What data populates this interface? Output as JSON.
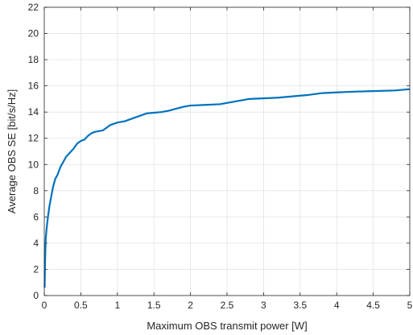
{
  "chart_data": {
    "type": "line",
    "xlabel": "Maximum OBS transmit power [W]",
    "ylabel": "Average OBS SE [bit/s/Hz]",
    "xlim": [
      0,
      5
    ],
    "ylim": [
      0,
      22
    ],
    "xticks": [
      0,
      0.5,
      1,
      1.5,
      2,
      2.5,
      3,
      3.5,
      4,
      4.5,
      5
    ],
    "xtick_labels": [
      "0",
      "0.5",
      "1",
      "1.5",
      "2",
      "2.5",
      "3",
      "3.5",
      "4",
      "4.5",
      "5"
    ],
    "yticks": [
      0,
      2,
      4,
      6,
      8,
      10,
      12,
      14,
      16,
      18,
      20,
      22
    ],
    "ytick_labels": [
      "0",
      "2",
      "4",
      "6",
      "8",
      "10",
      "12",
      "14",
      "16",
      "18",
      "20",
      "22"
    ],
    "grid": true,
    "series": [
      {
        "color": "#0072BD",
        "x": [
          0.005,
          0.01,
          0.02,
          0.03,
          0.05,
          0.07,
          0.1,
          0.12,
          0.15,
          0.18,
          0.22,
          0.26,
          0.3,
          0.35,
          0.4,
          0.45,
          0.5,
          0.55,
          0.6,
          0.65,
          0.7,
          0.8,
          0.85,
          0.9,
          1.0,
          1.1,
          1.2,
          1.3,
          1.4,
          1.5,
          1.6,
          1.7,
          1.8,
          1.9,
          2.0,
          2.2,
          2.4,
          2.5,
          2.6,
          2.8,
          3.0,
          3.2,
          3.4,
          3.6,
          3.8,
          4.0,
          4.2,
          4.5,
          4.8,
          5.0
        ],
        "y": [
          0.6,
          2.5,
          4.3,
          5.0,
          6.0,
          6.8,
          7.7,
          8.3,
          8.9,
          9.2,
          9.8,
          10.2,
          10.6,
          10.9,
          11.2,
          11.6,
          11.8,
          11.9,
          12.2,
          12.4,
          12.5,
          12.6,
          12.8,
          13.0,
          13.2,
          13.3,
          13.5,
          13.7,
          13.9,
          13.95,
          14.0,
          14.1,
          14.25,
          14.4,
          14.5,
          14.55,
          14.6,
          14.7,
          14.8,
          15.0,
          15.05,
          15.1,
          15.2,
          15.3,
          15.45,
          15.5,
          15.55,
          15.6,
          15.65,
          15.75
        ]
      }
    ]
  }
}
